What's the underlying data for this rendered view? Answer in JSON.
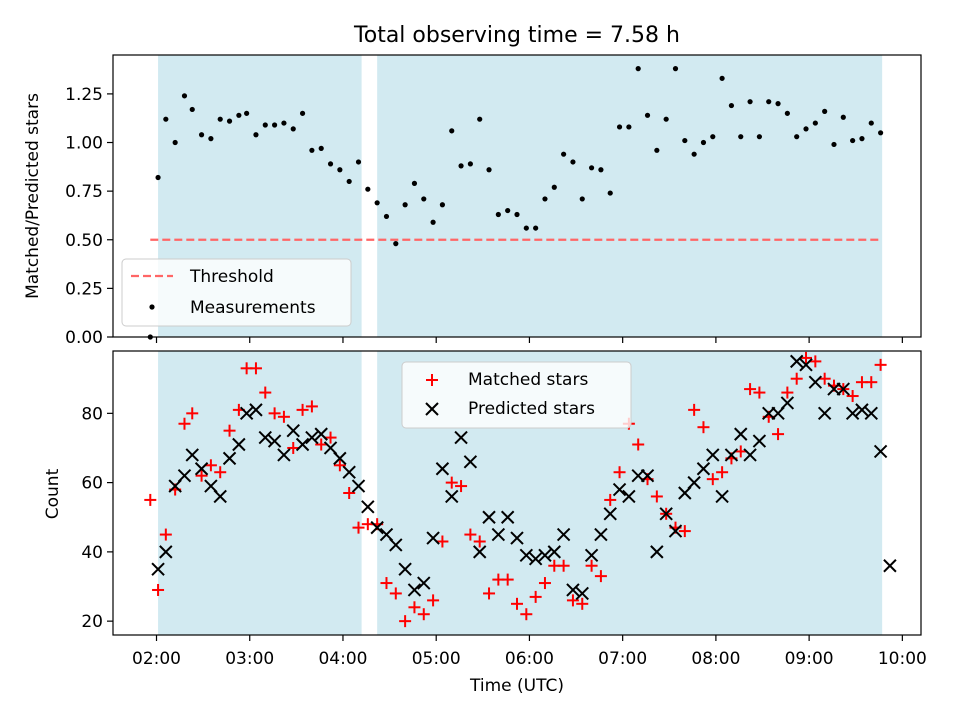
{
  "figure": {
    "title": "Total observing time = 7.58 h",
    "xlabel": "Time (UTC)",
    "xticks": [
      "02:00",
      "03:00",
      "04:00",
      "05:00",
      "06:00",
      "07:00",
      "08:00",
      "09:00",
      "10:00"
    ]
  },
  "colors": {
    "shade": "#add8e6",
    "threshold": "#ff6666",
    "measurements": "#000000",
    "matched": "#ff0000",
    "predicted": "#000000"
  },
  "chart_data": [
    {
      "type": "scatter",
      "ylabel": "Matched/Predicted stars",
      "ylim": [
        0,
        1.45
      ],
      "yticks": [
        "0.00",
        "0.25",
        "0.50",
        "0.75",
        "1.00",
        "1.25"
      ],
      "xlim": [
        "01:32",
        "10:12"
      ],
      "shaded_intervals": [
        [
          "02:01",
          "04:12"
        ],
        [
          "04:22",
          "09:47"
        ]
      ],
      "legend": {
        "placement": "lower-left",
        "entries": [
          "Threshold",
          "Measurements"
        ]
      },
      "threshold": {
        "name": "Threshold",
        "value": 0.5,
        "x_range": [
          "01:56",
          "09:47"
        ]
      },
      "series": [
        {
          "name": "Measurements",
          "marker": "dot",
          "x": [
            "01:56",
            "02:01",
            "02:06",
            "02:12",
            "02:18",
            "02:23",
            "02:29",
            "02:35",
            "02:41",
            "02:47",
            "02:53",
            "02:58",
            "03:04",
            "03:10",
            "03:16",
            "03:22",
            "03:28",
            "03:34",
            "03:40",
            "03:46",
            "03:52",
            "03:58",
            "04:04",
            "04:10",
            "04:16",
            "04:22",
            "04:28",
            "04:34",
            "04:40",
            "04:46",
            "04:52",
            "04:58",
            "05:04",
            "05:10",
            "05:16",
            "05:22",
            "05:28",
            "05:34",
            "05:40",
            "05:46",
            "05:52",
            "05:58",
            "06:04",
            "06:10",
            "06:16",
            "06:22",
            "06:28",
            "06:34",
            "06:40",
            "06:46",
            "06:52",
            "06:58",
            "07:04",
            "07:10",
            "07:16",
            "07:22",
            "07:28",
            "07:34",
            "07:40",
            "07:46",
            "07:52",
            "07:58",
            "08:04",
            "08:10",
            "08:16",
            "08:22",
            "08:28",
            "08:34",
            "08:40",
            "08:46",
            "08:52",
            "08:58",
            "09:04",
            "09:10",
            "09:16",
            "09:22",
            "09:28",
            "09:34",
            "09:40",
            "09:46"
          ],
          "y": [
            0.0,
            0.82,
            1.12,
            1.0,
            1.24,
            1.17,
            1.04,
            1.02,
            1.12,
            1.11,
            1.14,
            1.15,
            1.04,
            1.09,
            1.09,
            1.1,
            1.07,
            1.15,
            0.96,
            0.97,
            0.89,
            0.86,
            0.8,
            0.9,
            0.76,
            0.69,
            0.62,
            0.48,
            0.68,
            0.79,
            0.71,
            0.59,
            0.68,
            1.06,
            0.88,
            0.89,
            1.12,
            0.86,
            0.63,
            0.65,
            0.63,
            0.56,
            0.56,
            0.71,
            0.77,
            0.94,
            0.9,
            0.71,
            0.87,
            0.86,
            0.74,
            1.08,
            1.08,
            1.38,
            1.14,
            0.96,
            1.12,
            1.38,
            1.01,
            0.94,
            1.0,
            1.03,
            1.33,
            1.19,
            1.03,
            1.21,
            1.03,
            1.21,
            1.2,
            1.15,
            1.03,
            1.07,
            1.1,
            1.16,
            0.99,
            1.13,
            1.01,
            1.02,
            1.1,
            1.05
          ]
        }
      ]
    },
    {
      "type": "scatter",
      "ylabel": "Count",
      "ylim": [
        16,
        98
      ],
      "yticks": [
        "20",
        "40",
        "60",
        "80"
      ],
      "xlim": [
        "01:32",
        "10:12"
      ],
      "shaded_intervals": [
        [
          "02:01",
          "04:12"
        ],
        [
          "04:22",
          "09:47"
        ]
      ],
      "legend": {
        "placement": "upper-center",
        "entries": [
          "Matched stars",
          "Predicted stars"
        ]
      },
      "series": [
        {
          "name": "Matched stars",
          "marker": "plus",
          "x": [
            "01:56",
            "02:01",
            "02:06",
            "02:12",
            "02:18",
            "02:23",
            "02:29",
            "02:35",
            "02:41",
            "02:47",
            "02:53",
            "02:58",
            "03:04",
            "03:10",
            "03:16",
            "03:22",
            "03:28",
            "03:34",
            "03:40",
            "03:46",
            "03:52",
            "03:58",
            "04:04",
            "04:10",
            "04:16",
            "04:22",
            "04:28",
            "04:34",
            "04:40",
            "04:46",
            "04:52",
            "04:58",
            "05:04",
            "05:10",
            "05:16",
            "05:22",
            "05:28",
            "05:34",
            "05:40",
            "05:46",
            "05:52",
            "05:58",
            "06:04",
            "06:10",
            "06:16",
            "06:22",
            "06:28",
            "06:34",
            "06:40",
            "06:46",
            "06:52",
            "06:58",
            "07:04",
            "07:10",
            "07:16",
            "07:22",
            "07:28",
            "07:34",
            "07:40",
            "07:46",
            "07:52",
            "07:58",
            "08:04",
            "08:10",
            "08:16",
            "08:22",
            "08:28",
            "08:34",
            "08:40",
            "08:46",
            "08:52",
            "08:58",
            "09:04",
            "09:10",
            "09:16",
            "09:22",
            "09:28",
            "09:34",
            "09:40",
            "09:46"
          ],
          "y": [
            55,
            29,
            45,
            58,
            77,
            80,
            62,
            65,
            63,
            75,
            81,
            93,
            93,
            86,
            80,
            79,
            70,
            81,
            82,
            71,
            73,
            65,
            57,
            47,
            48,
            48,
            31,
            28,
            20,
            24,
            22,
            26,
            43,
            60,
            59,
            45,
            43,
            28,
            32,
            32,
            25,
            22,
            27,
            31,
            36,
            36,
            26,
            25,
            36,
            33,
            55,
            63,
            77,
            71,
            61,
            56,
            51,
            47,
            46,
            81,
            76,
            61,
            63,
            67,
            69,
            87,
            86,
            79,
            74,
            86,
            90,
            96,
            95,
            90,
            88,
            87,
            85,
            89,
            89,
            94
          ]
        },
        {
          "name": "Predicted stars",
          "marker": "x",
          "x": [
            "02:01",
            "02:06",
            "02:12",
            "02:18",
            "02:23",
            "02:29",
            "02:35",
            "02:41",
            "02:47",
            "02:53",
            "02:58",
            "03:04",
            "03:10",
            "03:16",
            "03:22",
            "03:28",
            "03:34",
            "03:40",
            "03:46",
            "03:52",
            "03:58",
            "04:04",
            "04:10",
            "04:16",
            "04:22",
            "04:28",
            "04:34",
            "04:40",
            "04:46",
            "04:52",
            "04:58",
            "05:04",
            "05:10",
            "05:16",
            "05:22",
            "05:28",
            "05:34",
            "05:40",
            "05:46",
            "05:52",
            "05:58",
            "06:04",
            "06:10",
            "06:16",
            "06:22",
            "06:28",
            "06:34",
            "06:40",
            "06:46",
            "06:52",
            "06:58",
            "07:04",
            "07:10",
            "07:16",
            "07:22",
            "07:28",
            "07:34",
            "07:40",
            "07:46",
            "07:52",
            "07:58",
            "08:04",
            "08:10",
            "08:16",
            "08:22",
            "08:28",
            "08:34",
            "08:40",
            "08:46",
            "08:52",
            "08:58",
            "09:04",
            "09:10",
            "09:16",
            "09:22",
            "09:28",
            "09:34",
            "09:40",
            "09:46",
            "09:52"
          ],
          "y": [
            35,
            40,
            59,
            62,
            68,
            64,
            59,
            56,
            67,
            71,
            80,
            81,
            73,
            72,
            68,
            75,
            71,
            73,
            74,
            70,
            67,
            63,
            59,
            53,
            47,
            45,
            42,
            35,
            29,
            31,
            44,
            64,
            56,
            73,
            66,
            40,
            50,
            45,
            50,
            44,
            39,
            38,
            39,
            40,
            45,
            29,
            28,
            39,
            45,
            51,
            58,
            56,
            62,
            62,
            40,
            51,
            46,
            57,
            60,
            64,
            68,
            56,
            68,
            74,
            68,
            72,
            80,
            80,
            83,
            95,
            94,
            89,
            80,
            87,
            87,
            80,
            81,
            80,
            69,
            36
          ]
        }
      ]
    }
  ]
}
